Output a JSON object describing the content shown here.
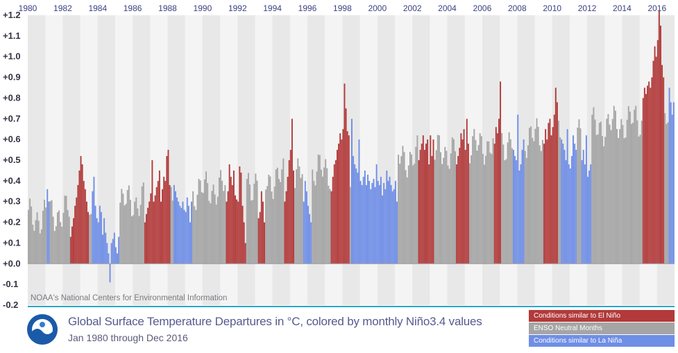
{
  "chart_data": {
    "type": "bar",
    "title": "Global Surface Temperature Departures in °C, colored by monthly Niño3.4 values",
    "subtitle": "Jan 1980 through Dec 2016",
    "credit": "NOAA's National Centers for Environmental Information",
    "x_range": [
      "1980-01",
      "2016-12"
    ],
    "x_tick_labels": [
      "1980",
      "1982",
      "1984",
      "1986",
      "1988",
      "1990",
      "1992",
      "1994",
      "1996",
      "1998",
      "2000",
      "2002",
      "2004",
      "2006",
      "2008",
      "2010",
      "2012",
      "2014",
      "2016"
    ],
    "y_tick_labels": [
      "+1.2",
      "+1.1",
      "+1.0",
      "+0.9",
      "+0.8",
      "+0.7",
      "+0.6",
      "+0.5",
      "+0.4",
      "+0.3",
      "+0.2",
      "+0.1",
      "+0.0",
      "-0.1",
      "-0.2"
    ],
    "ylim": [
      -0.2,
      1.2
    ],
    "legend_position": "bottom-right",
    "legend": [
      {
        "key": "elnino",
        "label": "Conditions similar to El Niño",
        "color": "#b23a3a"
      },
      {
        "key": "neutral",
        "label": "ENSO Neutral Months",
        "color": "#a5a5a5"
      },
      {
        "key": "lanina",
        "label": "Conditions similar to La Niña",
        "color": "#6f8ee6"
      }
    ],
    "series": [
      {
        "key": "elnino",
        "segments": [
          {
            "start": "1982-06",
            "end": "1983-06",
            "values": [
              0.13,
              0.18,
              0.22,
              0.28,
              0.32,
              0.38,
              0.45,
              0.52,
              0.48,
              0.4,
              0.36,
              0.3,
              0.25
            ]
          },
          {
            "start": "1986-09",
            "end": "1988-02",
            "values": [
              0.2,
              0.24,
              0.27,
              0.3,
              0.34,
              0.5,
              0.3,
              0.33,
              0.37,
              0.4,
              0.45,
              0.3,
              0.36,
              0.42,
              0.4,
              0.52,
              0.55,
              0.38
            ]
          },
          {
            "start": "1991-05",
            "end": "1992-06",
            "values": [
              0.3,
              0.35,
              0.48,
              0.42,
              0.38,
              0.45,
              0.33,
              0.31,
              0.3,
              0.47,
              0.44,
              0.28,
              0.2,
              0.1
            ]
          },
          {
            "start": "1993-03",
            "end": "1993-07",
            "values": [
              0.22,
              0.25,
              0.35,
              0.3,
              0.2
            ]
          },
          {
            "start": "1994-09",
            "end": "1995-03",
            "values": [
              0.3,
              0.35,
              0.42,
              0.5,
              0.55,
              0.7,
              0.45
            ]
          },
          {
            "start": "1997-05",
            "end": "1998-05",
            "values": [
              0.35,
              0.42,
              0.48,
              0.5,
              0.55,
              0.58,
              0.63,
              0.6,
              0.65,
              0.87,
              0.75,
              0.64,
              0.62
            ]
          },
          {
            "start": "2002-05",
            "end": "2003-03",
            "values": [
              0.5,
              0.55,
              0.58,
              0.62,
              0.55,
              0.58,
              0.6,
              0.48,
              0.62,
              0.52,
              0.6
            ]
          },
          {
            "start": "2004-07",
            "end": "2005-03",
            "values": [
              0.48,
              0.52,
              0.56,
              0.63,
              0.6,
              0.65,
              0.55,
              0.7,
              0.58
            ]
          },
          {
            "start": "2006-09",
            "end": "2007-01",
            "values": [
              0.58,
              0.66,
              0.63,
              0.7,
              0.88
            ]
          },
          {
            "start": "2009-07",
            "end": "2010-04",
            "values": [
              0.58,
              0.65,
              0.6,
              0.68,
              0.7,
              0.62,
              0.66,
              0.72,
              0.85,
              0.78
            ]
          },
          {
            "start": "2015-03",
            "end": "2016-05",
            "values": [
              0.8,
              0.85,
              0.82,
              0.86,
              0.88,
              0.85,
              0.9,
              0.98,
              1.05,
              1.0,
              1.08,
              1.22,
              1.15,
              0.96,
              0.9
            ]
          }
        ]
      },
      {
        "key": "lanina",
        "segments": [
          {
            "start": "1981-02",
            "end": "1981-03",
            "values": [
              0.36,
              0.3
            ]
          },
          {
            "start": "1983-09",
            "end": "1984-09",
            "values": [
              0.35,
              0.42,
              0.28,
              0.22,
              0.2,
              0.28,
              0.25,
              0.14,
              0.22,
              0.15,
              0.1,
              0.05,
              -0.09
            ]
          },
          {
            "start": "1984-10",
            "end": "1985-03",
            "values": [
              0.1,
              0.12,
              0.15,
              0.08,
              0.05,
              0.13
            ]
          },
          {
            "start": "1988-05",
            "end": "1989-05",
            "values": [
              0.38,
              0.35,
              0.32,
              0.3,
              0.28,
              0.27,
              0.3,
              0.26,
              0.25,
              0.32,
              0.28,
              0.2,
              0.3
            ]
          },
          {
            "start": "1995-10",
            "end": "1996-03",
            "values": [
              0.3,
              0.4,
              0.35,
              0.28,
              0.24,
              0.2
            ]
          },
          {
            "start": "1998-07",
            "end": "2001-02",
            "values": [
              0.7,
              0.52,
              0.48,
              0.46,
              0.44,
              0.6,
              0.4,
              0.38,
              0.42,
              0.45,
              0.38,
              0.43,
              0.4,
              0.36,
              0.39,
              0.41,
              0.37,
              0.48,
              0.4,
              0.38,
              0.42,
              0.33,
              0.39,
              0.36,
              0.45,
              0.4,
              0.42,
              0.38,
              0.35,
              0.36,
              0.4,
              0.3
            ]
          },
          {
            "start": "2007-10",
            "end": "2008-05",
            "values": [
              0.55,
              0.52,
              0.5,
              0.72,
              0.45,
              0.48,
              0.55,
              0.6
            ]
          },
          {
            "start": "2010-07",
            "end": "2011-05",
            "values": [
              0.6,
              0.58,
              0.55,
              0.5,
              0.65,
              0.48,
              0.46,
              0.52,
              0.62,
              0.58,
              0.55
            ]
          },
          {
            "start": "2011-09",
            "end": "2012-03",
            "values": [
              0.5,
              0.55,
              0.48,
              0.62,
              0.42,
              0.45,
              0.48
            ]
          },
          {
            "start": "2016-09",
            "end": "2016-12",
            "values": [
              0.85,
              0.78,
              0.72,
              0.78
            ]
          }
        ]
      }
    ],
    "neutral_fill_note": "All other months are ENSO neutral"
  }
}
